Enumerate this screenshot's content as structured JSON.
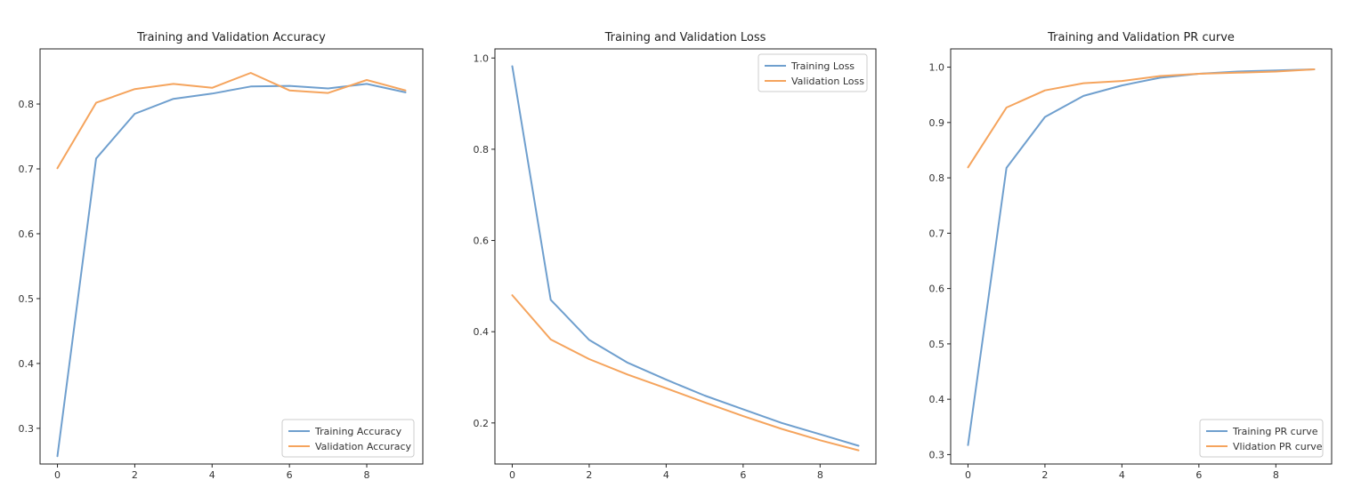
{
  "colors": {
    "training": "#6f9fce",
    "validation": "#f5a45d",
    "axes": "#222222"
  },
  "chart_data": [
    {
      "type": "line",
      "title": "Training and Validation Accuracy",
      "xlabel": "",
      "ylabel": "",
      "xlim": [
        -0.45,
        9.45
      ],
      "ylim": [
        0.245,
        0.885
      ],
      "xticks": [
        0,
        2,
        4,
        6,
        8
      ],
      "xtick_labels": [
        "0",
        "2",
        "4",
        "6",
        "8"
      ],
      "yticks": [
        0.3,
        0.4,
        0.5,
        0.6,
        0.7,
        0.8
      ],
      "ytick_labels": [
        "0.3",
        "0.4",
        "0.5",
        "0.6",
        "0.7",
        "0.8"
      ],
      "legend_position": "lower-right",
      "x": [
        0,
        1,
        2,
        3,
        4,
        5,
        6,
        7,
        8,
        9
      ],
      "series": [
        {
          "name": "Training Accuracy",
          "color_key": "training",
          "values": [
            0.257,
            0.716,
            0.785,
            0.808,
            0.816,
            0.827,
            0.828,
            0.824,
            0.831,
            0.818
          ]
        },
        {
          "name": "Validation Accuracy",
          "color_key": "validation",
          "values": [
            0.701,
            0.802,
            0.823,
            0.831,
            0.825,
            0.848,
            0.821,
            0.817,
            0.837,
            0.821
          ]
        }
      ]
    },
    {
      "type": "line",
      "title": "Training and Validation Loss",
      "xlabel": "",
      "ylabel": "",
      "xlim": [
        -0.45,
        9.45
      ],
      "ylim": [
        0.11,
        1.02
      ],
      "xticks": [
        0,
        2,
        4,
        6,
        8
      ],
      "xtick_labels": [
        "0",
        "2",
        "4",
        "6",
        "8"
      ],
      "yticks": [
        0.2,
        0.4,
        0.6,
        0.8,
        1.0
      ],
      "ytick_labels": [
        "0.2",
        "0.4",
        "0.6",
        "0.8",
        "1.0"
      ],
      "legend_position": "upper-right",
      "x": [
        0,
        1,
        2,
        3,
        4,
        5,
        6,
        7,
        8,
        9
      ],
      "series": [
        {
          "name": "Training Loss",
          "color_key": "training",
          "values": [
            0.982,
            0.47,
            0.382,
            0.332,
            0.295,
            0.26,
            0.23,
            0.2,
            0.175,
            0.15
          ]
        },
        {
          "name": "Validation Loss",
          "color_key": "validation",
          "values": [
            0.48,
            0.383,
            0.34,
            0.306,
            0.276,
            0.245,
            0.215,
            0.187,
            0.162,
            0.14
          ]
        }
      ]
    },
    {
      "type": "line",
      "title": "Training and Validation PR curve",
      "xlabel": "",
      "ylabel": "",
      "xlim": [
        -0.45,
        9.45
      ],
      "ylim": [
        0.283,
        1.033
      ],
      "xticks": [
        0,
        2,
        4,
        6,
        8
      ],
      "xtick_labels": [
        "0",
        "2",
        "4",
        "6",
        "8"
      ],
      "yticks": [
        0.3,
        0.4,
        0.5,
        0.6,
        0.7,
        0.8,
        0.9,
        1.0
      ],
      "ytick_labels": [
        "0.3",
        "0.4",
        "0.5",
        "0.6",
        "0.7",
        "0.8",
        "0.9",
        "1.0"
      ],
      "legend_position": "lower-right",
      "x": [
        0,
        1,
        2,
        3,
        4,
        5,
        6,
        7,
        8,
        9
      ],
      "series": [
        {
          "name": "Training PR curve",
          "color_key": "training",
          "values": [
            0.317,
            0.818,
            0.91,
            0.948,
            0.967,
            0.981,
            0.988,
            0.992,
            0.994,
            0.996
          ]
        },
        {
          "name": "Vlidation PR curve",
          "color_key": "validation",
          "values": [
            0.819,
            0.927,
            0.958,
            0.971,
            0.975,
            0.984,
            0.988,
            0.99,
            0.992,
            0.996
          ]
        }
      ]
    }
  ]
}
